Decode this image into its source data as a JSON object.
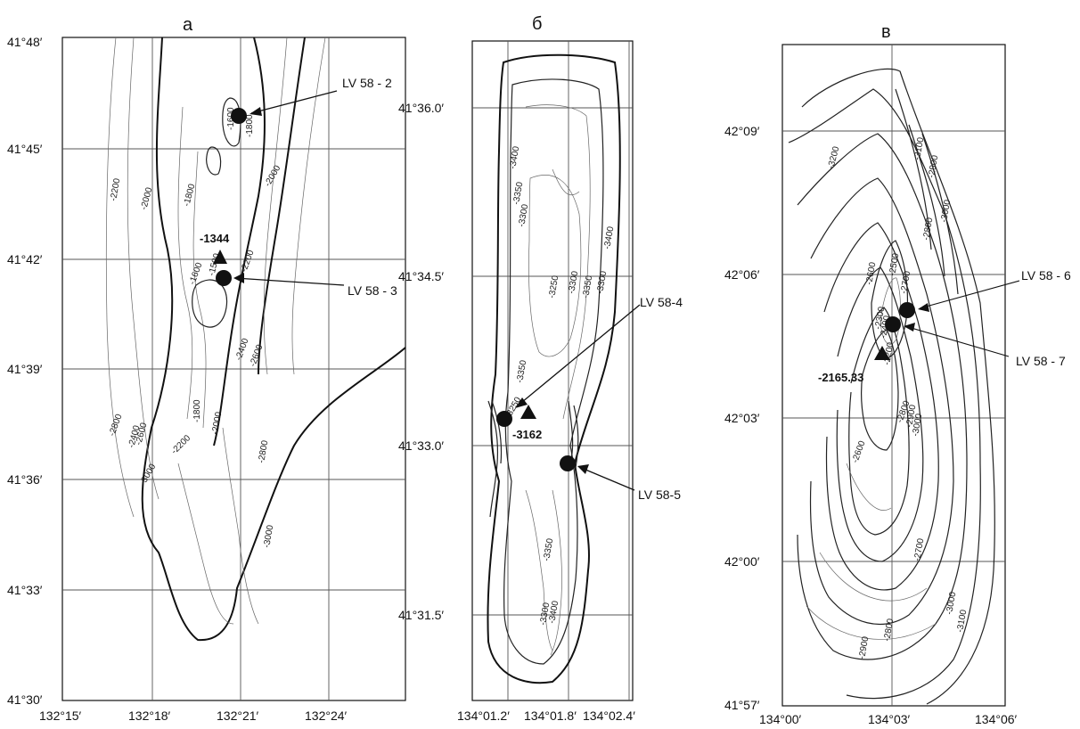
{
  "panels": [
    {
      "title": "а",
      "lat_labels": [
        "41°48′",
        "41°45′",
        "41°42′",
        "41°39′",
        "41°36′",
        "41°33′",
        "41°30′"
      ],
      "lon_labels": [
        "132°15′",
        "132°18′",
        "132°21′",
        "132°24′"
      ],
      "contour_labels": [
        "-1600",
        "-1800",
        "-2000",
        "-2200",
        "-2000",
        "-1800",
        "-1344",
        "-1500",
        "-1600",
        "-2200",
        "-2400",
        "-2600",
        "-1800",
        "-2000",
        "-2200",
        "-2400",
        "-2600",
        "-2800",
        "-3000",
        "-2800",
        "-3000"
      ],
      "peak_label": "-1344",
      "stations": [
        "LV 58 - 2",
        "LV 58 - 3"
      ]
    },
    {
      "title": "б",
      "lat_labels": [
        "41°36.0′",
        "41°34.5′",
        "41°33.0′",
        "41°31.5′"
      ],
      "lon_labels": [
        "134°01.2′",
        "134°01.8′",
        "134°02.4′"
      ],
      "contour_labels": [
        "-3400",
        "-3300",
        "-3350",
        "-3250",
        "-3300",
        "-3350",
        "-3350",
        "-3300",
        "-3250",
        "-3400",
        "-3350",
        "-3400",
        "-3300"
      ],
      "peak_label": "-3162",
      "stations": [
        "LV 58-4",
        "LV 58-5"
      ]
    },
    {
      "title": "в",
      "lat_labels": [
        "42°09′",
        "42°06′",
        "42°03′",
        "42°00′",
        "41°57′"
      ],
      "lon_labels": [
        "134°00′",
        "134°03′",
        "134°06′"
      ],
      "contour_labels": [
        "-3200",
        "-3100",
        "-2900",
        "-2800",
        "-3000",
        "-2500",
        "-2600",
        "-2700",
        "-2400",
        "-2300",
        "-2200",
        "-2600",
        "-2800",
        "-3000",
        "-2900",
        "-2700",
        "-3000",
        "-3100",
        "-2800",
        "-2900"
      ],
      "peak_label": "-2165.33",
      "stations": [
        "LV 58 - 6",
        "LV 58 - 7"
      ]
    }
  ]
}
